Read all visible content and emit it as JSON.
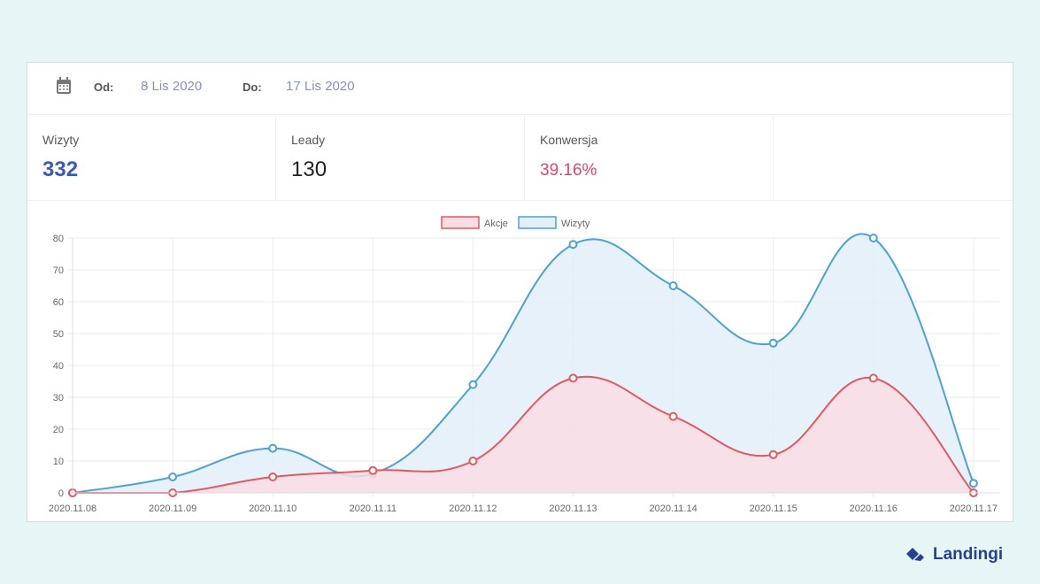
{
  "date_range": {
    "from_label": "Od:",
    "from_value": "8 Lis 2020",
    "to_label": "Do:",
    "to_value": "17 Lis 2020"
  },
  "stats": [
    {
      "label": "Wizyty",
      "value": "332",
      "color": "#3b5bb0"
    },
    {
      "label": "Leady",
      "value": "130",
      "color": "#222222"
    },
    {
      "label": "Konwersja",
      "value": "39.16%",
      "color": "#e0436e"
    }
  ],
  "brand": "Landingi",
  "chart_data": {
    "type": "area",
    "x": [
      "2020.11.08",
      "2020.11.09",
      "2020.11.10",
      "2020.11.11",
      "2020.11.12",
      "2020.11.13",
      "2020.11.14",
      "2020.11.15",
      "2020.11.16",
      "2020.11.17"
    ],
    "series": [
      {
        "name": "Akcje",
        "values": [
          0,
          0,
          5,
          7,
          10,
          36,
          24,
          12,
          36,
          0
        ],
        "color": "#e05a62",
        "fill": "#f9dde3"
      },
      {
        "name": "Wizyty",
        "values": [
          0,
          5,
          14,
          6,
          34,
          78,
          65,
          47,
          80,
          3
        ],
        "color": "#4ea1d3",
        "fill": "#e3eff9"
      }
    ],
    "ylim": [
      0,
      80
    ],
    "yticks": [
      0,
      10,
      20,
      30,
      40,
      50,
      60,
      70,
      80
    ],
    "grid": true,
    "legend": "top-center"
  }
}
